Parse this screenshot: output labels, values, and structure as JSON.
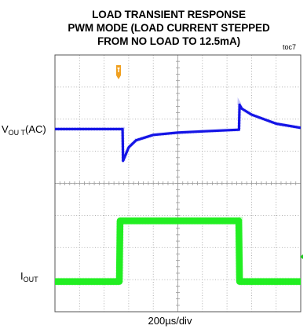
{
  "title": {
    "line1": "LOAD TRANSIENT RESPONSE",
    "line2": "PWM MODE (LOAD CURRENT STEPPED",
    "line3": "FROM NO LOAD TO 12.5mA)"
  },
  "figure_tag": "toc7",
  "channels": {
    "vout": {
      "main": "V",
      "sub": "OU T",
      "suffix": "(AC)"
    },
    "iout": {
      "main": "I",
      "sub": "OUT"
    }
  },
  "timebase": "200µs/div",
  "colors": {
    "vout_trace": "#1515e6",
    "iout_trace": "#22ee22",
    "trigger_marker": "#f0a020",
    "grid": "#9a9a9a",
    "frame": "#555555"
  },
  "chart_data": {
    "type": "line",
    "title": "LOAD TRANSIENT RESPONSE PWM MODE (LOAD CURRENT STEPPED FROM NO LOAD TO 12.5mA)",
    "xlabel": "200µs/div",
    "x_divisions": 10,
    "y_divisions": 8,
    "grid": true,
    "series": [
      {
        "name": "VOUT(AC)",
        "x_div": [
          0,
          2.75,
          2.77,
          3.0,
          3.3,
          4.0,
          5.0,
          6.0,
          7.49,
          7.51,
          7.6,
          8.0,
          9.0,
          10.0
        ],
        "y_div_from_top": [
          2.31,
          2.31,
          3.3,
          2.88,
          2.66,
          2.49,
          2.42,
          2.38,
          2.33,
          1.55,
          1.67,
          1.86,
          2.14,
          2.27
        ]
      },
      {
        "name": "IOUT",
        "x_div": [
          0,
          2.62,
          2.65,
          7.48,
          7.51,
          10.0
        ],
        "y_div_from_top": [
          7.06,
          7.06,
          5.17,
          5.17,
          7.06,
          7.06
        ]
      }
    ]
  }
}
